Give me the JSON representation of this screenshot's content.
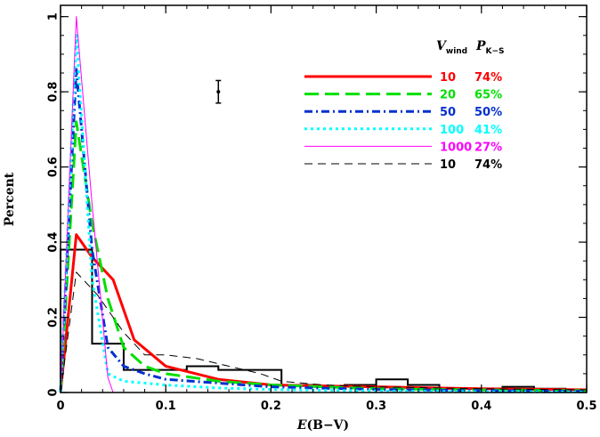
{
  "chart_data": {
    "type": "line",
    "xlabel": "E(B−V)",
    "xlabel_italic_prefix": "E",
    "xlabel_rest": "(B−V)",
    "ylabel": "Percent",
    "xlim": [
      0,
      0.5
    ],
    "ylim": [
      0,
      1.03
    ],
    "xticks": [
      0,
      0.1,
      0.2,
      0.3,
      0.4,
      0.5
    ],
    "xtick_labels": [
      "0",
      "0.1",
      "0.2",
      "0.3",
      "0.4",
      "0.5"
    ],
    "yticks": [
      0,
      0.2,
      0.4,
      0.6,
      0.8,
      1
    ],
    "ytick_labels": [
      "0",
      "0.2",
      "0.4",
      "0.6",
      "0.8",
      "1"
    ],
    "grid": false,
    "legend_placement": "top-right",
    "legend_header": {
      "col1": "V",
      "col1_sub": "wind",
      "col2": "P",
      "col2_sub": "K−S"
    },
    "histogram": {
      "name": "observed",
      "color": "#000000",
      "edges": [
        0,
        0.03,
        0.045,
        0.06,
        0.075,
        0.09,
        0.105,
        0.12,
        0.15,
        0.18,
        0.21,
        0.24,
        0.27,
        0.3,
        0.33,
        0.36,
        0.39,
        0.42,
        0.45,
        0.48
      ],
      "values": [
        0.38,
        0.13,
        0.13,
        0.06,
        0.06,
        0.06,
        0.06,
        0.07,
        0.06,
        0.06,
        0.02,
        0.015,
        0.02,
        0.035,
        0.02,
        0.01,
        0.01,
        0.015,
        0.01
      ]
    },
    "error_bar": {
      "x": 0.15,
      "y": 0.8,
      "ylow": 0.77,
      "yhigh": 0.83
    },
    "series": [
      {
        "name": "10",
        "pks": "74%",
        "color": "#ff0000",
        "dash": "",
        "width": 3,
        "x": [
          0,
          0.015,
          0.03,
          0.05,
          0.07,
          0.1,
          0.15,
          0.2,
          0.3,
          0.4,
          0.5
        ],
        "y": [
          0,
          0.42,
          0.36,
          0.3,
          0.14,
          0.07,
          0.035,
          0.02,
          0.015,
          0.01,
          0.007
        ]
      },
      {
        "name": "20",
        "pks": "65%",
        "color": "#00e000",
        "dash": "16,7",
        "width": 3,
        "x": [
          0,
          0.015,
          0.03,
          0.045,
          0.06,
          0.08,
          0.1,
          0.15,
          0.2,
          0.3,
          0.4,
          0.5
        ],
        "y": [
          0,
          0.72,
          0.45,
          0.25,
          0.12,
          0.07,
          0.05,
          0.03,
          0.02,
          0.01,
          0.007,
          0.005
        ]
      },
      {
        "name": "50",
        "pks": "50%",
        "color": "#0030d0",
        "dash": "9,4,2,4",
        "width": 3,
        "x": [
          0,
          0.015,
          0.03,
          0.045,
          0.06,
          0.08,
          0.1,
          0.15,
          0.2,
          0.3,
          0.4,
          0.5
        ],
        "y": [
          0,
          0.86,
          0.38,
          0.12,
          0.07,
          0.05,
          0.035,
          0.025,
          0.015,
          0.008,
          0.005,
          0.003
        ]
      },
      {
        "name": "100",
        "pks": "41%",
        "color": "#00ffff",
        "dash": "3,4",
        "width": 3,
        "x": [
          0,
          0.015,
          0.03,
          0.045,
          0.06,
          0.08,
          0.1,
          0.15,
          0.2,
          0.3,
          0.4,
          0.5
        ],
        "y": [
          0,
          0.95,
          0.3,
          0.05,
          0.03,
          0.025,
          0.02,
          0.012,
          0.008,
          0.004,
          0.002,
          0.001
        ]
      },
      {
        "name": "1000",
        "pks": "27%",
        "color": "#ff00ff",
        "dash": "",
        "width": 1,
        "x": [
          0,
          0.015,
          0.03,
          0.045,
          0.05
        ],
        "y": [
          0,
          1.0,
          0.5,
          0.04,
          0
        ]
      },
      {
        "name": "10",
        "pks": "74%",
        "color": "#000000",
        "dash": "9,6",
        "width": 1,
        "x": [
          0,
          0.015,
          0.035,
          0.06,
          0.08,
          0.1,
          0.13,
          0.16,
          0.19,
          0.21,
          0.25,
          0.3,
          0.4,
          0.5
        ],
        "y": [
          0,
          0.32,
          0.26,
          0.16,
          0.1,
          0.1,
          0.09,
          0.07,
          0.05,
          0.03,
          0.02,
          0.015,
          0.01,
          0.007
        ]
      }
    ]
  }
}
